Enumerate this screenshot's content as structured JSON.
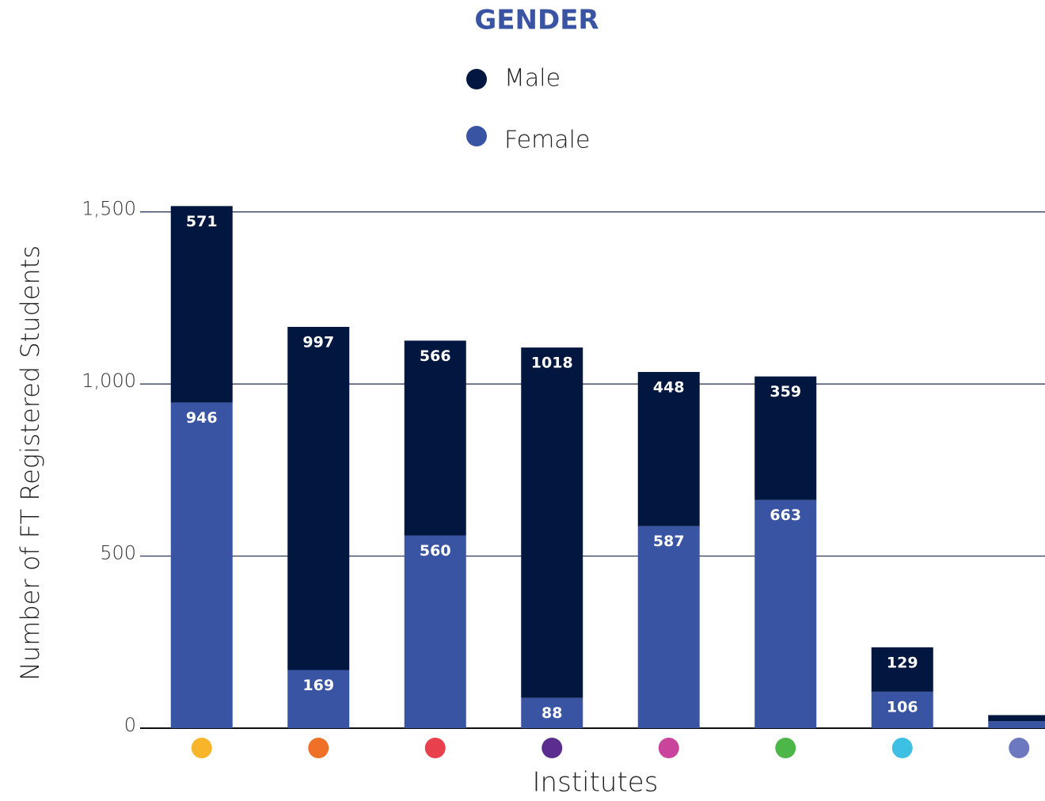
{
  "chart_data": {
    "type": "stacked_bar",
    "title": "GENDER",
    "title_color": "#3a54a4",
    "categories": [
      null,
      null,
      null,
      null,
      null,
      null,
      null,
      null
    ],
    "category_colors": [
      "#f9b52a",
      "#ee7127",
      "#e8404d",
      "#5a2d8e",
      "#c9449c",
      "#4cb748",
      "#3ec0e4",
      "#6c78bf"
    ],
    "series": [
      {
        "name": "Female",
        "color": "#3a54a4",
        "values": [
          946,
          169,
          560,
          88,
          587,
          663,
          106,
          20
        ]
      },
      {
        "name": "Male",
        "color": "#02173f",
        "values": [
          571,
          997,
          566,
          1018,
          448,
          359,
          129,
          18
        ]
      }
    ],
    "legend_position": "top",
    "x_label": "Institutes",
    "y_label": "Number of FT Registered Students",
    "ylim": [
      0,
      1550
    ],
    "yticks": [
      0,
      500,
      {
        "value": 1000,
        "label": "1,000"
      },
      {
        "value": 1500,
        "label": "1,500"
      }
    ],
    "grid": true
  }
}
